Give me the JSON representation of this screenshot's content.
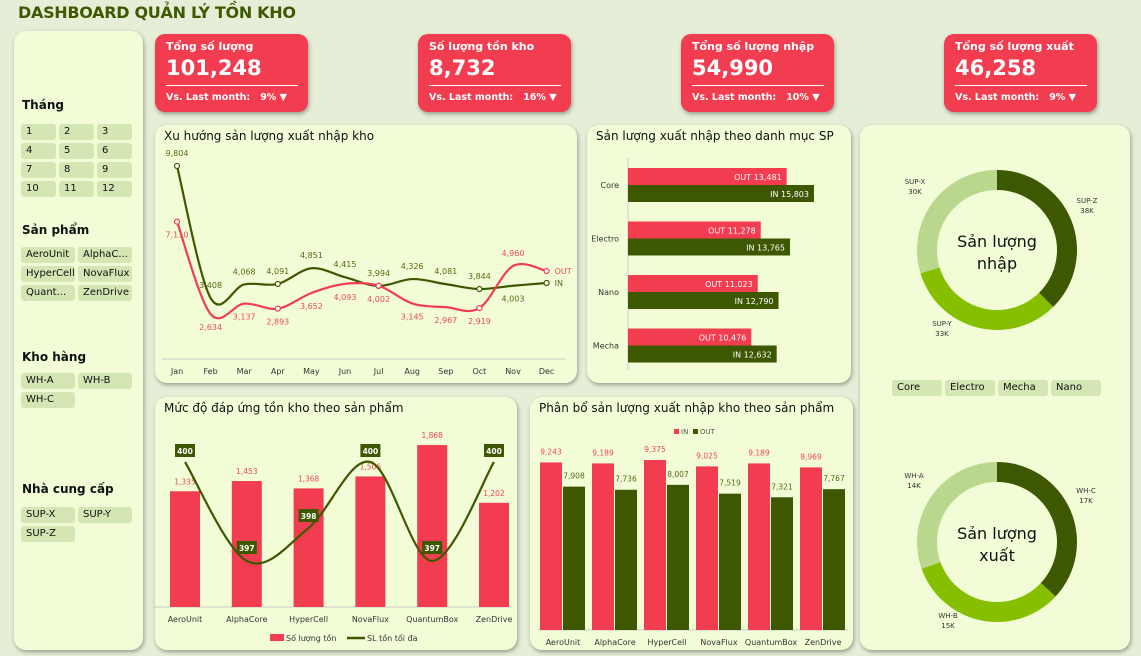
{
  "title": "DASHBOARD QUẢN LÝ TỒN KHO",
  "colors": {
    "red": "#f23d50",
    "dark_green": "#3d5800",
    "mid_green": "#86bf00",
    "light_green": "#b9d88e",
    "panel": "#f2fdd7"
  },
  "filters": {
    "month": {
      "label": "Tháng",
      "items": [
        "1",
        "2",
        "3",
        "4",
        "5",
        "6",
        "7",
        "8",
        "9",
        "10",
        "11",
        "12"
      ]
    },
    "product": {
      "label": "Sản phẩm",
      "items": [
        "AeroUnit",
        "AlphaC...",
        "HyperCell",
        "NovaFlux",
        "Quant...",
        "ZenDrive"
      ]
    },
    "warehouse": {
      "label": "Kho hàng",
      "items": [
        "WH-A",
        "WH-B",
        "WH-C"
      ]
    },
    "supplier": {
      "label": "Nhà cung cấp",
      "items": [
        "SUP-X",
        "SUP-Y",
        "SUP-Z"
      ]
    },
    "category": {
      "items": [
        "Core",
        "Electro",
        "Mecha",
        "Nano"
      ]
    }
  },
  "kpis": [
    {
      "label": "Tổng số lượng",
      "value": "101,248",
      "compare": "Vs. Last month:",
      "change": "9% ▼"
    },
    {
      "label": "Số lượng tồn kho",
      "value": "8,732",
      "compare": "Vs. Last month:",
      "change": "16% ▼"
    },
    {
      "label": "Tổng số lượng nhập",
      "value": "54,990",
      "compare": "Vs. Last month:",
      "change": "10% ▼"
    },
    {
      "label": "Tổng số lượng xuất",
      "value": "46,258",
      "compare": "Vs. Last month:",
      "change": "9% ▼"
    }
  ],
  "chart_data": [
    {
      "id": "trend",
      "type": "line",
      "title": "Xu hướng sản lượng xuất nhập kho",
      "categories": [
        "Jan",
        "Feb",
        "Mar",
        "Apr",
        "May",
        "Jun",
        "Jul",
        "Aug",
        "Sep",
        "Oct",
        "Nov",
        "Dec"
      ],
      "series": [
        {
          "name": "IN",
          "values": [
            9804,
            3408,
            4068,
            4091,
            4851,
            4415,
            3994,
            4326,
            4081,
            3844,
            4003,
            4136
          ],
          "labels": [
            "9,804",
            "3,408",
            "4,068",
            "4,091",
            "4,851",
            "4,415",
            "3,994",
            "4,326",
            "4,081",
            "3,844",
            "4,003",
            ""
          ]
        },
        {
          "name": "OUT",
          "values": [
            7110,
            2634,
            3137,
            2893,
            3652,
            4093,
            4002,
            3145,
            2967,
            2919,
            4960,
            4717
          ],
          "labels": [
            "7,110",
            "2,634",
            "3,137",
            "2,893",
            "3,652",
            "4,093",
            "4,002",
            "3,145",
            "2,967",
            "2,919",
            "4,960",
            ""
          ]
        }
      ]
    },
    {
      "id": "category",
      "type": "bar",
      "title": "Sản lượng xuất nhập theo danh mục SP",
      "categories": [
        "Core",
        "Electro",
        "Nano",
        "Mecha"
      ],
      "series": [
        {
          "name": "OUT",
          "values": [
            13481,
            11278,
            11023,
            10476
          ],
          "labels": [
            "OUT 13,481",
            "OUT 11,278",
            "OUT 11,023",
            "OUT 10,476"
          ]
        },
        {
          "name": "IN",
          "values": [
            15803,
            13765,
            12790,
            12632
          ],
          "labels": [
            "IN 15,803",
            "IN 13,765",
            "IN 12,790",
            "IN 12,632"
          ]
        }
      ]
    },
    {
      "id": "stock",
      "type": "bar",
      "title": "Mức độ đáp ứng tồn kho theo sản phẩm",
      "categories": [
        "AeroUnit",
        "AlphaCore",
        "HyperCell",
        "NovaFlux",
        "QuantumBox",
        "ZenDrive"
      ],
      "series": [
        {
          "name": "Số lượng tồn",
          "values": [
            1335,
            1453,
            1368,
            1506,
            1868,
            1202
          ],
          "labels": [
            "1,335",
            "1,453",
            "1,368",
            "1,506",
            "1,868",
            "1,202"
          ]
        },
        {
          "name": "SL tồn tối đa",
          "values": [
            400,
            397,
            398,
            400,
            397,
            400
          ],
          "labels": [
            "400",
            "397",
            "398",
            "400",
            "397",
            "400"
          ]
        }
      ],
      "legend": "bottom"
    },
    {
      "id": "distribution",
      "type": "bar",
      "title": "Phân bổ sản lượng xuất nhập kho theo sản phẩm",
      "categories": [
        "AeroUnit",
        "AlphaCore",
        "HyperCell",
        "NovaFlux",
        "QuantumBox",
        "ZenDrive"
      ],
      "series": [
        {
          "name": "IN",
          "values": [
            9243,
            9189,
            9375,
            9025,
            9189,
            8969
          ],
          "labels": [
            "9,243",
            "9,189",
            "9,375",
            "9,025",
            "9,189",
            "8,969"
          ]
        },
        {
          "name": "OUT",
          "values": [
            7908,
            7736,
            8007,
            7519,
            7321,
            7767
          ],
          "labels": [
            "7,908",
            "7,736",
            "8,007",
            "7,519",
            "7,321",
            "7,767"
          ]
        }
      ],
      "legend": "top"
    },
    {
      "id": "donut_in",
      "type": "pie",
      "center_label": "Sản lượng nhập",
      "slices": [
        {
          "name": "SUP-Z",
          "value": 38,
          "label": "38K"
        },
        {
          "name": "SUP-Y",
          "value": 33,
          "label": "33K"
        },
        {
          "name": "SUP-X",
          "value": 30,
          "label": "30K"
        }
      ]
    },
    {
      "id": "donut_out",
      "type": "pie",
      "center_label": "Sản lượng xuất",
      "slices": [
        {
          "name": "WH-C",
          "value": 17,
          "label": "17K"
        },
        {
          "name": "WH-B",
          "value": 15,
          "label": "15K"
        },
        {
          "name": "WH-A",
          "value": 14,
          "label": "14K"
        }
      ]
    }
  ]
}
